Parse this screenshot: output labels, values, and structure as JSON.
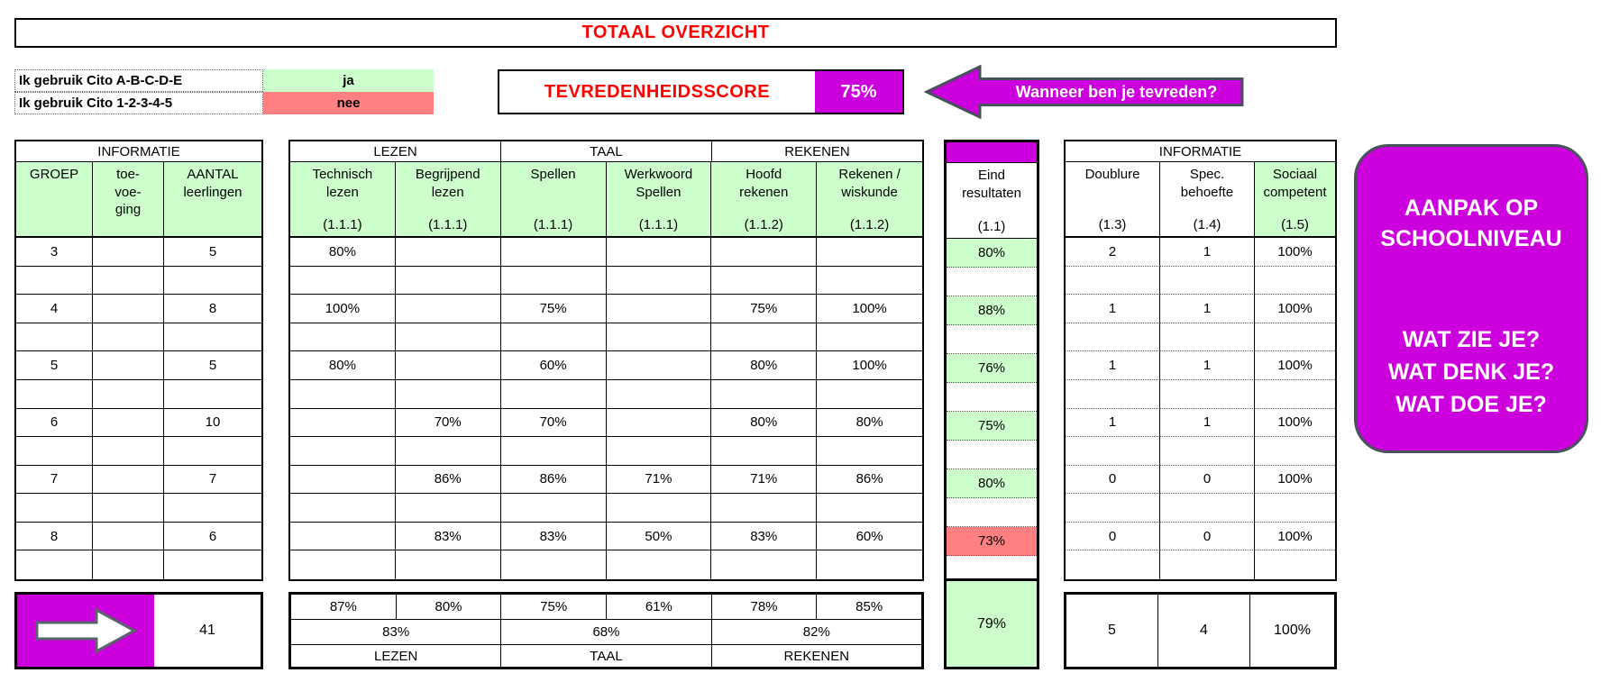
{
  "title": "TOTAAL OVERZICHT",
  "colors": {
    "green": "#ccffcc",
    "yellow": "#ffffcc",
    "red": "#ff8080",
    "magenta": "#cc00dd",
    "accent_red": "#ff0000",
    "shape_border": "#46525a"
  },
  "cito": {
    "rows": [
      {
        "label": "Ik gebruik Cito A-B-C-D-E",
        "value": "ja",
        "color": "green"
      },
      {
        "label": "Ik gebruik Cito 1-2-3-4-5",
        "value": "nee",
        "color": "red"
      }
    ]
  },
  "satisfaction": {
    "label": "TEVREDENHEIDSSCORE",
    "score": "75%",
    "arrow_label": "Wanneer ben je tevreden?"
  },
  "groups_table": {
    "header": "INFORMATIE",
    "columns": [
      {
        "name": "GROEP"
      },
      {
        "name": "toe-\nvoe-\nging"
      },
      {
        "name": "AANTAL\nleerlingen"
      }
    ],
    "rows": [
      {
        "groep": "3",
        "toevoeging": "",
        "aantal": "5"
      },
      {},
      {
        "groep": "4",
        "toevoeging": "",
        "aantal": "8"
      },
      {},
      {
        "groep": "5",
        "toevoeging": "",
        "aantal": "5"
      },
      {},
      {
        "groep": "6",
        "toevoeging": "",
        "aantal": "10"
      },
      {},
      {
        "groep": "7",
        "toevoeging": "",
        "aantal": "7"
      },
      {},
      {
        "groep": "8",
        "toevoeging": "",
        "aantal": "6"
      },
      {}
    ]
  },
  "results_table": {
    "sections": [
      "LEZEN",
      "TAAL",
      "REKENEN"
    ],
    "columns": [
      {
        "name": "Technisch\nlezen",
        "code": "(1.1.1)"
      },
      {
        "name": "Begrijpend\nlezen",
        "code": "(1.1.1)"
      },
      {
        "name": "Spellen",
        "code": "(1.1.1)"
      },
      {
        "name": "Werkwoord\nSpellen",
        "code": "(1.1.1)"
      },
      {
        "name": "Hoofd\nrekenen",
        "code": "(1.1.2)"
      },
      {
        "name": "Rekenen /\nwiskunde",
        "code": "(1.1.2)"
      }
    ],
    "rows": [
      [
        {
          "v": "80%",
          "c": "g"
        },
        null,
        null,
        null,
        null,
        null
      ],
      [
        null,
        null,
        null,
        null,
        null,
        null
      ],
      [
        {
          "v": "100%",
          "c": "g"
        },
        null,
        {
          "v": "75%",
          "c": "g"
        },
        null,
        {
          "v": "75%",
          "c": "g"
        },
        {
          "v": "100%",
          "c": "g"
        }
      ],
      [
        null,
        null,
        null,
        null,
        null,
        null
      ],
      [
        {
          "v": "80%",
          "c": "g"
        },
        null,
        {
          "v": "60%",
          "c": "r"
        },
        null,
        {
          "v": "80%",
          "c": "g"
        },
        {
          "v": "100%",
          "c": "g"
        }
      ],
      [
        null,
        null,
        null,
        null,
        null,
        null
      ],
      [
        null,
        {
          "v": "70%",
          "c": "r"
        },
        {
          "v": "70%",
          "c": "r"
        },
        null,
        {
          "v": "80%",
          "c": "g"
        },
        {
          "v": "80%",
          "c": "g"
        }
      ],
      [
        null,
        null,
        null,
        null,
        null,
        null
      ],
      [
        null,
        {
          "v": "86%",
          "c": "g"
        },
        {
          "v": "86%",
          "c": "g"
        },
        {
          "v": "71%",
          "c": "r"
        },
        {
          "v": "71%",
          "c": "r"
        },
        {
          "v": "86%",
          "c": "g"
        }
      ],
      [
        null,
        null,
        null,
        null,
        null,
        null
      ],
      [
        null,
        {
          "v": "83%",
          "c": "g"
        },
        {
          "v": "83%",
          "c": "g"
        },
        {
          "v": "50%",
          "c": "r"
        },
        {
          "v": "83%",
          "c": "g"
        },
        {
          "v": "60%",
          "c": "r"
        }
      ],
      [
        null,
        null,
        null,
        null,
        null,
        null
      ]
    ]
  },
  "eind": {
    "name": "Eind\nresultaten",
    "code": "(1.1)",
    "rows": [
      {
        "v": "80%",
        "c": "g"
      },
      null,
      {
        "v": "88%",
        "c": "g"
      },
      null,
      {
        "v": "76%",
        "c": "g"
      },
      null,
      {
        "v": "75%",
        "c": "g"
      },
      null,
      {
        "v": "80%",
        "c": "g"
      },
      null,
      {
        "v": "73%",
        "c": "r"
      }
    ],
    "total": "79%"
  },
  "right_info": {
    "header": "INFORMATIE",
    "columns": [
      {
        "name": "Doublure",
        "code": "(1.3)",
        "bg": "white"
      },
      {
        "name": "Spec.\nbehoefte",
        "code": "(1.4)",
        "bg": "white"
      },
      {
        "name": "Sociaal\ncompetent",
        "code": "(1.5)",
        "bg": "green"
      }
    ],
    "rows": [
      {
        "doublure": {
          "v": "2",
          "c": "r"
        },
        "spec": {
          "v": "1"
        },
        "sociaal": {
          "v": "100%",
          "c": "g"
        }
      },
      {},
      {
        "doublure": {
          "v": "1",
          "c": "r"
        },
        "spec": {
          "v": "1"
        },
        "sociaal": {
          "v": "100%",
          "c": "g"
        }
      },
      {},
      {
        "doublure": {
          "v": "1",
          "c": "r"
        },
        "spec": {
          "v": "1"
        },
        "sociaal": {
          "v": "100%",
          "c": "g"
        }
      },
      {},
      {
        "doublure": {
          "v": "1",
          "c": "r"
        },
        "spec": {
          "v": "1"
        },
        "sociaal": {
          "v": "100%",
          "c": "g"
        }
      },
      {},
      {
        "doublure": {
          "v": "0"
        },
        "spec": {
          "v": "0"
        },
        "sociaal": {
          "v": "100%",
          "c": "g"
        }
      },
      {},
      {
        "doublure": {
          "v": "0"
        },
        "spec": {
          "v": "0"
        },
        "sociaal": {
          "v": "100%",
          "c": "g"
        }
      },
      {}
    ],
    "totals": [
      {
        "v": "5"
      },
      {
        "v": "4"
      },
      {
        "v": "100%",
        "c": "g"
      }
    ]
  },
  "totals": {
    "aantal": "41",
    "column_averages": [
      {
        "v": "87%",
        "c": "g"
      },
      {
        "v": "80%",
        "c": "g"
      },
      {
        "v": "75%",
        "c": "r"
      },
      {
        "v": "61%",
        "c": "r"
      },
      {
        "v": "78%",
        "c": "g"
      },
      {
        "v": "85%",
        "c": "g"
      }
    ],
    "domain_averages": [
      {
        "v": "83%",
        "c": "g"
      },
      {
        "v": "68%",
        "c": "r"
      },
      {
        "v": "82%",
        "c": "g"
      }
    ],
    "domain_labels": [
      "LEZEN",
      "TAAL",
      "REKENEN"
    ]
  },
  "aanpak": {
    "title": "AANPAK OP\nSCHOOLNIVEAU",
    "lines": [
      "WAT ZIE JE?",
      "WAT DENK JE?",
      "WAT DOE JE?"
    ]
  }
}
